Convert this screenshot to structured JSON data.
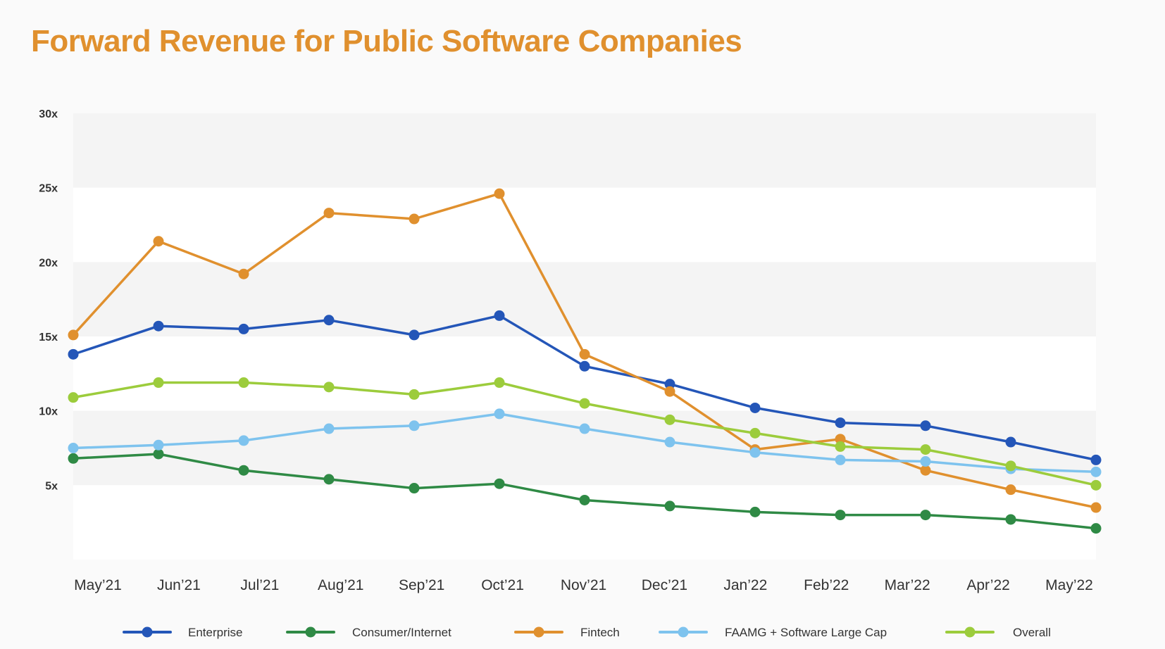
{
  "title": "Forward Revenue for Public Software Companies",
  "chart_data": {
    "type": "line",
    "title": "Forward Revenue for Public Software Companies",
    "x": [
      "May’21",
      "Jun’21",
      "Jul’21",
      "Aug’21",
      "Sep’21",
      "Oct’21",
      "Nov’21",
      "Dec’21",
      "Jan’22",
      "Feb’22",
      "Mar’22",
      "Apr’22",
      "May’22"
    ],
    "yticks": [
      "5x",
      "10x",
      "15x",
      "20x",
      "25x",
      "30x"
    ],
    "ylim": [
      0,
      30
    ],
    "grid": "alternating horizontal bands",
    "legend_position": "bottom",
    "series": [
      {
        "name": "Enterprise",
        "color": "#2456b8",
        "values": [
          13.8,
          15.7,
          15.5,
          16.1,
          15.1,
          16.4,
          13.0,
          11.8,
          10.2,
          9.2,
          9.0,
          7.9,
          6.7
        ]
      },
      {
        "name": "Consumer/Internet",
        "color": "#2f8a45",
        "values": [
          6.8,
          7.1,
          6.0,
          5.4,
          4.8,
          5.1,
          4.0,
          3.6,
          3.2,
          3.0,
          3.0,
          2.7,
          2.1
        ]
      },
      {
        "name": "Fintech",
        "color": "#e0902e",
        "values": [
          15.1,
          21.4,
          19.2,
          23.3,
          22.9,
          24.6,
          13.8,
          11.3,
          7.4,
          8.1,
          6.0,
          4.7,
          3.5
        ]
      },
      {
        "name": "FAAMG + Software Large Cap",
        "color": "#7ec3ee",
        "values": [
          7.5,
          7.7,
          8.0,
          8.8,
          9.0,
          9.8,
          8.8,
          7.9,
          7.2,
          6.7,
          6.6,
          6.1,
          5.9
        ]
      },
      {
        "name": "Overall",
        "color": "#9ccc3c",
        "values": [
          10.9,
          11.9,
          11.9,
          11.6,
          11.1,
          11.9,
          10.5,
          9.4,
          8.5,
          7.6,
          7.4,
          6.3,
          5.0
        ]
      }
    ]
  }
}
